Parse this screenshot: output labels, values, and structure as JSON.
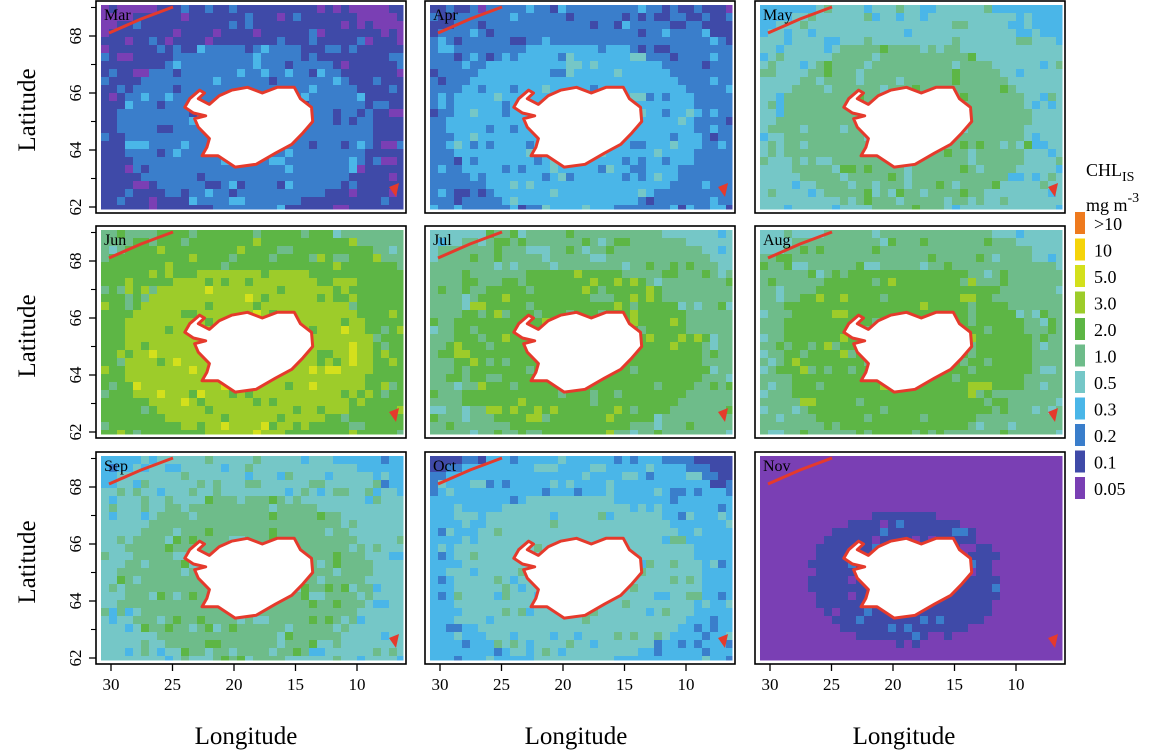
{
  "figure": {
    "y_axis_title": "Latitude",
    "x_axis_title": "Longitude",
    "y_ticks": [
      "62",
      "64",
      "66",
      "68"
    ],
    "x_ticks": [
      "30",
      "25",
      "20",
      "15",
      "10"
    ]
  },
  "panels": [
    {
      "month": "Mar",
      "level": 1
    },
    {
      "month": "Apr",
      "level": 2
    },
    {
      "month": "May",
      "level": 4
    },
    {
      "month": "Jun",
      "level": 6
    },
    {
      "month": "Jul",
      "level": 5
    },
    {
      "month": "Aug",
      "level": 5
    },
    {
      "month": "Sep",
      "level": 4
    },
    {
      "month": "Oct",
      "level": 3
    },
    {
      "month": "Nov",
      "level": 0
    }
  ],
  "legend": {
    "title_main": "CHL",
    "title_sub": "IS",
    "unit_main": "mg m",
    "unit_sup": "-3",
    "items": [
      {
        "label": ">10",
        "color": "#ee7a1e"
      },
      {
        "label": "10",
        "color": "#f5d40a"
      },
      {
        "label": "5.0",
        "color": "#d4e01c"
      },
      {
        "label": "3.0",
        "color": "#9dcc2a"
      },
      {
        "label": "2.0",
        "color": "#5db645"
      },
      {
        "label": "1.0",
        "color": "#6ebc8a"
      },
      {
        "label": "0.5",
        "color": "#75c7c7"
      },
      {
        "label": "0.3",
        "color": "#4ab6e8"
      },
      {
        "label": "0.2",
        "color": "#3a7ecb"
      },
      {
        "label": "0.1",
        "color": "#3f4aa8"
      },
      {
        "label": "0.05",
        "color": "#7a3fb4"
      }
    ]
  },
  "colors": {
    "coast": "#e53a2c",
    "land": "#ffffff",
    "frame": "#000000"
  }
}
